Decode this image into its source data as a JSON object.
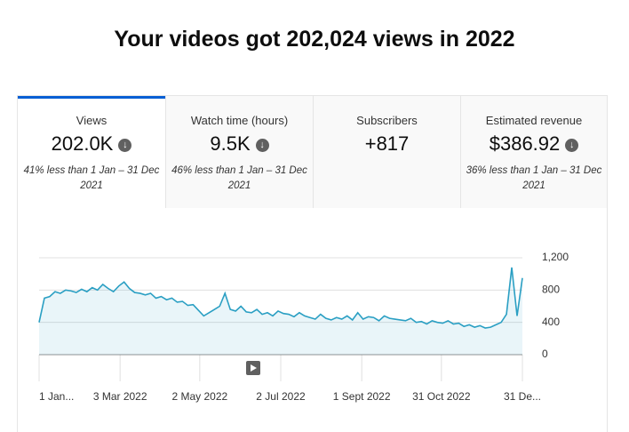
{
  "header": {
    "title": "Your videos got 202,024 views in 2022"
  },
  "tabs": [
    {
      "label": "Views",
      "value": "202.0K",
      "change": "41% less than 1 Jan – 31 Dec 2021"
    },
    {
      "label": "Watch time (hours)",
      "value": "9.5K",
      "change": "46% less than 1 Jan – 31 Dec 2021"
    },
    {
      "label": "Subscribers",
      "value": "+817"
    },
    {
      "label": "Estimated revenue",
      "value": "$386.92",
      "change": "36% less than 1 Jan – 31 Dec 2021"
    }
  ],
  "chart_data": {
    "type": "line",
    "x": [
      0,
      4,
      8,
      12,
      16,
      20,
      24,
      28,
      32,
      36,
      40,
      44,
      48,
      52,
      56,
      60,
      64,
      68,
      72,
      76,
      80,
      84,
      88,
      92,
      96,
      100,
      104,
      108,
      112,
      116,
      120,
      124,
      128,
      132,
      136,
      140,
      144,
      148,
      152,
      156,
      160,
      164,
      168,
      172,
      176,
      180,
      184,
      188,
      192,
      196,
      200,
      204,
      208,
      212,
      216,
      220,
      224,
      228,
      232,
      236,
      240,
      244,
      248,
      252,
      256,
      260,
      264,
      268,
      272,
      276,
      280,
      284,
      288,
      292,
      296,
      300,
      304,
      308,
      312,
      316,
      320,
      324,
      328,
      332,
      336,
      340,
      344,
      348,
      352,
      356,
      360,
      364
    ],
    "series": [
      {
        "name": "Views",
        "color": "#2a9fc3",
        "values": [
          400,
          700,
          720,
          780,
          760,
          800,
          790,
          770,
          810,
          780,
          830,
          800,
          870,
          820,
          780,
          850,
          900,
          820,
          770,
          760,
          740,
          760,
          700,
          720,
          680,
          700,
          650,
          660,
          610,
          620,
          550,
          480,
          520,
          560,
          600,
          760,
          560,
          540,
          600,
          530,
          520,
          560,
          500,
          520,
          480,
          540,
          510,
          500,
          470,
          520,
          480,
          460,
          440,
          500,
          450,
          430,
          460,
          440,
          480,
          430,
          520,
          440,
          470,
          460,
          420,
          480,
          450,
          440,
          430,
          420,
          450,
          400,
          410,
          380,
          420,
          400,
          390,
          420,
          380,
          390,
          350,
          370,
          340,
          360,
          330,
          340,
          370,
          400,
          500,
          1080,
          480,
          950
        ]
      }
    ],
    "xlim": [
      0,
      364
    ],
    "xticks": [
      {
        "value": 0,
        "label": "1 Jan..."
      },
      {
        "value": 61,
        "label": "3 Mar 2022"
      },
      {
        "value": 121,
        "label": "2 May 2022"
      },
      {
        "value": 182,
        "label": "2 Jul 2022"
      },
      {
        "value": 243,
        "label": "1 Sept 2022"
      },
      {
        "value": 303,
        "label": "31 Oct 2022"
      },
      {
        "value": 364,
        "label": "31 De..."
      }
    ],
    "ylim": [
      0,
      1200
    ],
    "yticks": [
      0,
      400,
      800,
      {
        "value": 1200,
        "label": "1,200"
      }
    ],
    "grid": true
  }
}
